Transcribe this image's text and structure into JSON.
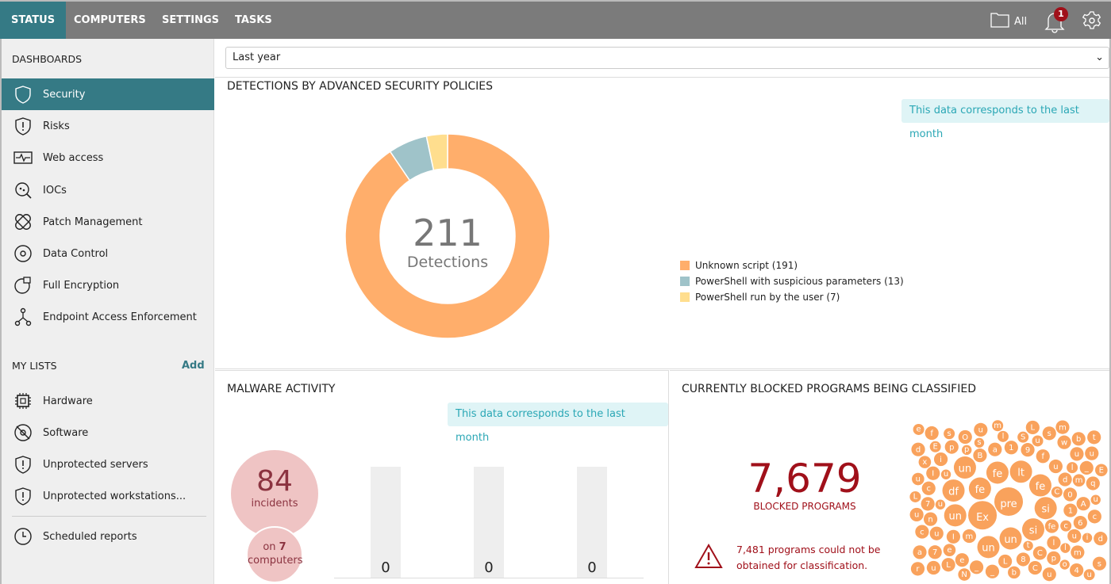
{
  "nav": {
    "tabs": [
      "STATUS",
      "COMPUTERS",
      "SETTINGS",
      "TASKS"
    ],
    "active": "STATUS",
    "folder_label": "All",
    "notification_count": "1"
  },
  "sidebar": {
    "dashboards_title": "DASHBOARDS",
    "dashboards": [
      {
        "label": "Security",
        "icon": "shield-icon"
      },
      {
        "label": "Risks",
        "icon": "shield-alert-icon"
      },
      {
        "label": "Web access",
        "icon": "pulse-monitor-icon"
      },
      {
        "label": "IOCs",
        "icon": "search-ioc-icon"
      },
      {
        "label": "Patch Management",
        "icon": "bandage-icon"
      },
      {
        "label": "Data Control",
        "icon": "disc-icon"
      },
      {
        "label": "Full Encryption",
        "icon": "encryption-icon"
      },
      {
        "label": "Endpoint Access Enforcement",
        "icon": "network-icon"
      }
    ],
    "lists_title": "MY LISTS",
    "add_label": "Add",
    "lists": [
      {
        "label": "Hardware",
        "icon": "chip-icon"
      },
      {
        "label": "Software",
        "icon": "software-disc-icon"
      },
      {
        "label": "Unprotected servers",
        "icon": "shield-alert-icon"
      },
      {
        "label": "Unprotected workstations...",
        "icon": "shield-alert-icon"
      }
    ],
    "scheduled": {
      "label": "Scheduled reports",
      "icon": "clock-icon"
    }
  },
  "filter": {
    "period": "Last year"
  },
  "detections": {
    "title": "DETECTIONS BY ADVANCED SECURITY POLICIES",
    "note": "This data corresponds to the last month",
    "total": "211",
    "total_label": "Detections",
    "chart_data": {
      "type": "pie",
      "title": "Detections",
      "categories": [
        "Unknown script (191)",
        "PowerShell with suspicious parameters (13)",
        "PowerShell run by the user (7)"
      ],
      "values": [
        191,
        13,
        7
      ],
      "colors": [
        "#FFAE6B",
        "#9FC3C9",
        "#FFDE8E"
      ]
    }
  },
  "malware": {
    "title": "MALWARE ACTIVITY",
    "note": "This data corresponds to the last month",
    "incidents": "84",
    "incidents_label": "incidents",
    "computers_prefix": "on ",
    "computers": "7",
    "computers_label": "computers",
    "chart_data": {
      "type": "bar",
      "values": [
        0,
        0,
        0
      ],
      "labels": [
        "0",
        "0",
        "0"
      ]
    }
  },
  "blocked": {
    "title": "CURRENTLY BLOCKED PROGRAMS BEING CLASSIFIED",
    "count": "7,679",
    "count_label": "BLOCKED PROGRAMS",
    "warning": "7,481 programs could not be obtained for classification.",
    "bubbles": [
      "pre",
      "Ex",
      "fe",
      "fe",
      "lt",
      "fe",
      "si",
      "si",
      "un",
      "un",
      "un",
      "df",
      "un",
      "fe",
      "m",
      "B",
      "a",
      "1",
      "9",
      "f",
      "u",
      "d",
      "0",
      "1",
      "l",
      "C",
      "8",
      "L",
      "I",
      "A",
      "6",
      "u",
      "p",
      "C",
      "_",
      "_",
      "e",
      "u",
      "n",
      "7",
      "c",
      "I",
      "i",
      "p",
      "O",
      "u",
      "L",
      "s",
      "w",
      "u",
      "_",
      "q",
      "c",
      "m",
      "u",
      "L",
      "7",
      "c",
      "u",
      "m",
      "b",
      "u",
      "d",
      "4",
      "u",
      "a",
      "d",
      "f",
      "t",
      "s",
      "r",
      "m",
      "b",
      "e",
      "N",
      "u",
      "x",
      "E",
      "C",
      "c",
      "l",
      "S",
      "u",
      "l",
      "m",
      "L",
      "E",
      "s",
      "u",
      "e",
      "t",
      "u",
      "u",
      "p",
      "s",
      "l",
      "u",
      "i",
      "o"
    ]
  }
}
